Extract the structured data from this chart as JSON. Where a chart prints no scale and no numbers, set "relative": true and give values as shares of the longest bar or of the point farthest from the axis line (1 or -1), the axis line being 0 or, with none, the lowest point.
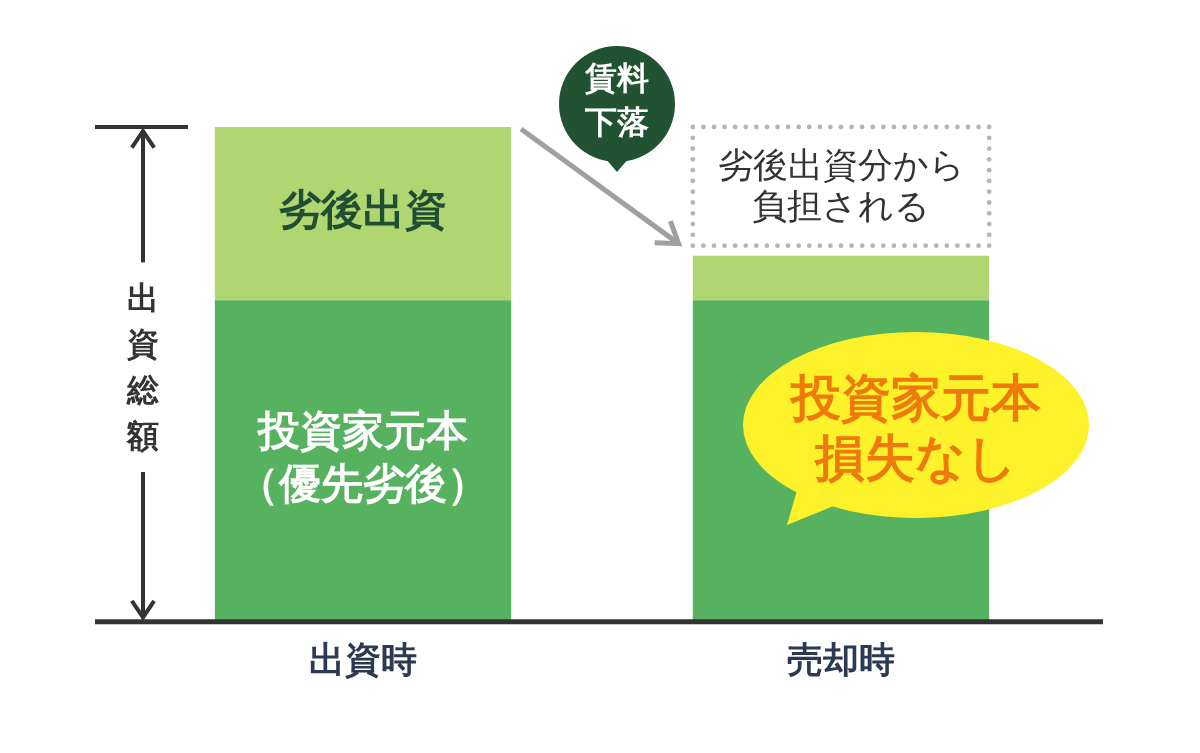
{
  "chart_data": {
    "type": "bar",
    "categories": [
      "出資時",
      "売却時"
    ],
    "series": [
      {
        "name": "投資家元本（優先劣後）",
        "color": "#56b25e",
        "values": [
          0.65,
          0.65
        ]
      },
      {
        "name": "劣後出資",
        "color": "#b0d672",
        "values": [
          0.35,
          0.09
        ]
      }
    ],
    "stacked": true,
    "relative": true,
    "ylabel": "出資総額",
    "annotations": [
      "賃料下落",
      "劣後出資分から負担される",
      "投資家元本損失なし"
    ]
  }
}
